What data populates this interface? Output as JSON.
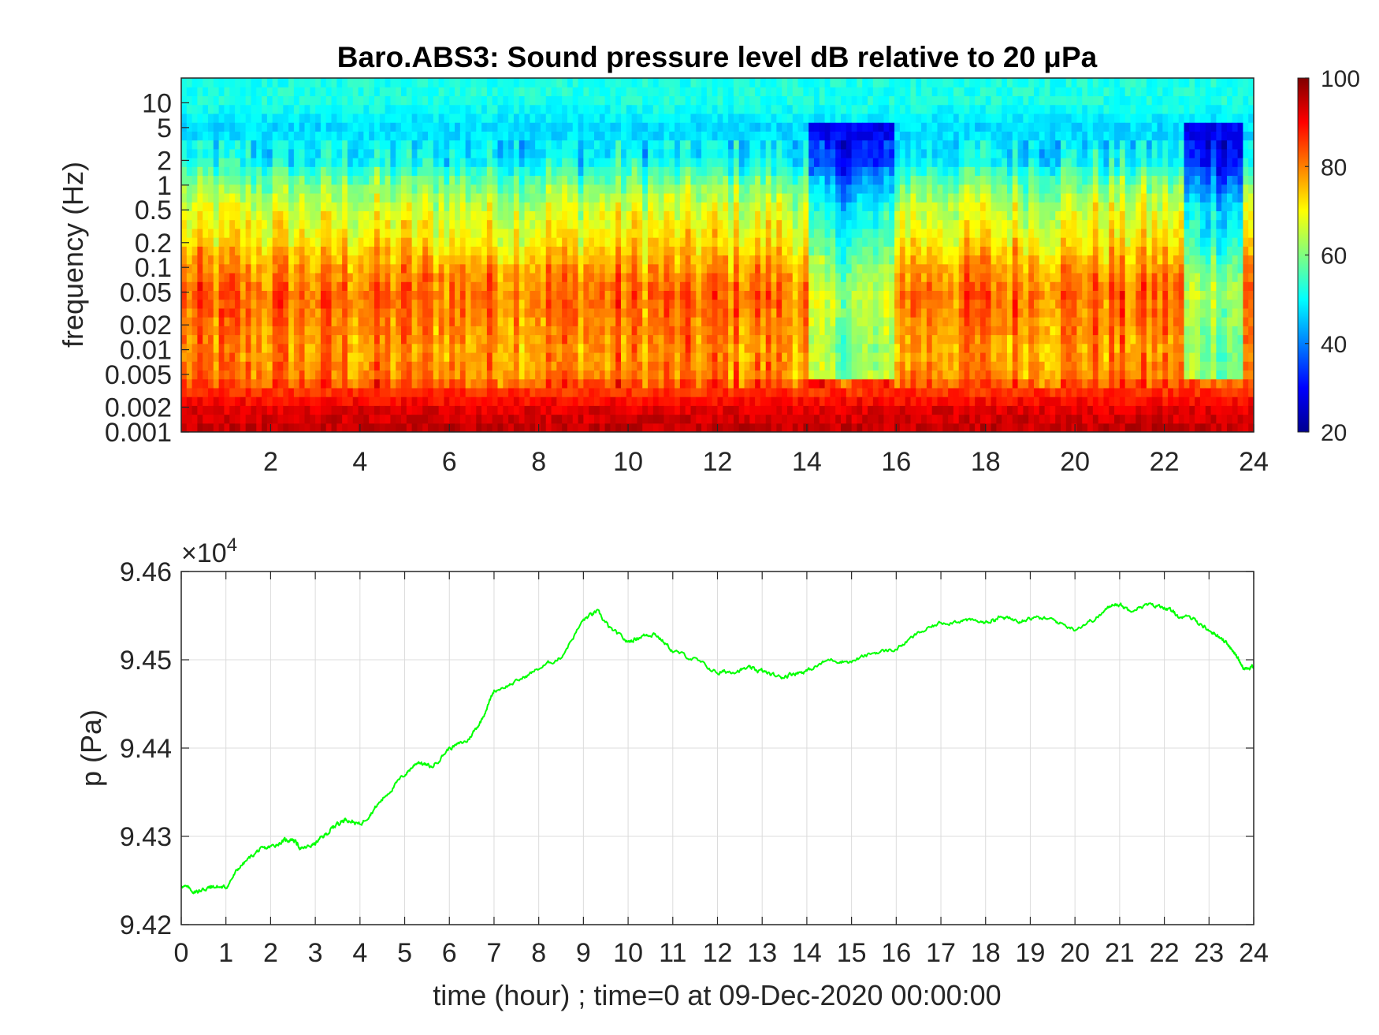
{
  "chart_data": [
    {
      "type": "heatmap",
      "title": "Baro.ABS3: Sound pressure level dB relative to 20 μPa",
      "xlabel": "",
      "ylabel": "frequency (Hz)",
      "xlim": [
        0,
        24
      ],
      "x_ticks": [
        2,
        4,
        6,
        8,
        10,
        12,
        14,
        16,
        18,
        20,
        22,
        24
      ],
      "y_scale": "log",
      "ylim": [
        0.001,
        20
      ],
      "y_ticks": [
        0.001,
        0.002,
        0.005,
        0.01,
        0.02,
        0.05,
        0.1,
        0.2,
        0.5,
        1,
        2,
        5,
        10
      ],
      "y_tick_labels": [
        "0.001",
        "0.002",
        "0.005",
        "0.01",
        "0.02",
        "0.05",
        "0.1",
        "0.2",
        "0.5",
        "1",
        "2",
        "5",
        "10"
      ],
      "colormap": "jet",
      "colorbar": {
        "range": [
          20,
          100
        ],
        "ticks": [
          20,
          40,
          60,
          80,
          100
        ]
      },
      "approx_levels_db_by_frequency": [
        {
          "freq_hz": 0.001,
          "db": 95
        },
        {
          "freq_hz": 0.002,
          "db": 92
        },
        {
          "freq_hz": 0.005,
          "db": 80
        },
        {
          "freq_hz": 0.01,
          "db": 78
        },
        {
          "freq_hz": 0.02,
          "db": 80
        },
        {
          "freq_hz": 0.05,
          "db": 82
        },
        {
          "freq_hz": 0.1,
          "db": 78
        },
        {
          "freq_hz": 0.2,
          "db": 72
        },
        {
          "freq_hz": 0.5,
          "db": 67
        },
        {
          "freq_hz": 1,
          "db": 60
        },
        {
          "freq_hz": 2,
          "db": 50
        },
        {
          "freq_hz": 5,
          "db": 47
        },
        {
          "freq_hz": 10,
          "db": 52
        },
        {
          "freq_hz": 20,
          "db": 52
        }
      ],
      "quiet_periods_hours": [
        [
          14,
          15.9
        ],
        [
          22.5,
          23.8
        ]
      ]
    },
    {
      "type": "line",
      "xlabel": "time (hour) ; time=0 at 09-Dec-2020 00:00:00",
      "ylabel": "p (Pa)",
      "y_multiplier": "×10",
      "y_multiplier_exponent": "4",
      "xlim": [
        0,
        24
      ],
      "ylim": [
        9.42,
        9.46
      ],
      "x_ticks": [
        0,
        1,
        2,
        3,
        4,
        5,
        6,
        7,
        8,
        9,
        10,
        11,
        12,
        13,
        14,
        15,
        16,
        17,
        18,
        19,
        20,
        21,
        22,
        23,
        24
      ],
      "y_ticks": [
        9.42,
        9.43,
        9.44,
        9.45,
        9.46
      ],
      "y_tick_labels": [
        "9.42",
        "9.43",
        "9.44",
        "9.45",
        "9.46"
      ],
      "grid": true,
      "series": [
        {
          "color": "#00ff00",
          "x": [
            0,
            0.3,
            0.5,
            0.7,
            1.0,
            1.3,
            1.7,
            2.0,
            2.3,
            2.5,
            2.7,
            3.0,
            3.3,
            3.5,
            3.7,
            4.0,
            4.3,
            4.6,
            5.0,
            5.3,
            5.6,
            6.0,
            6.4,
            6.7,
            7.0,
            7.5,
            8.0,
            8.5,
            9.0,
            9.3,
            9.6,
            10.0,
            10.3,
            10.6,
            11.0,
            11.5,
            12.0,
            12.3,
            12.7,
            13.0,
            13.4,
            13.7,
            14.0,
            14.5,
            15.0,
            15.5,
            16.0,
            16.5,
            17.0,
            17.5,
            18.0,
            18.3,
            18.7,
            19.0,
            19.5,
            20.0,
            20.5,
            20.9,
            21.2,
            21.6,
            22.0,
            22.3,
            22.7,
            23.0,
            23.3,
            23.6,
            23.8,
            24.0
          ],
          "y": [
            9.4245,
            9.4237,
            9.424,
            9.4243,
            9.4242,
            9.4265,
            9.4283,
            9.4288,
            9.4295,
            9.4297,
            9.4285,
            9.4292,
            9.4305,
            9.4315,
            9.432,
            9.4313,
            9.433,
            9.4348,
            9.437,
            9.4385,
            9.4378,
            9.44,
            9.4408,
            9.443,
            9.4465,
            9.4475,
            9.449,
            9.4503,
            9.4545,
            9.4555,
            9.4535,
            9.452,
            9.4527,
            9.453,
            9.451,
            9.45,
            9.4485,
            9.4487,
            9.449,
            9.4487,
            9.448,
            9.4485,
            9.4487,
            9.45,
            9.4498,
            9.4508,
            9.4512,
            9.453,
            9.4542,
            9.4545,
            9.4542,
            9.4548,
            9.4545,
            9.4548,
            9.4545,
            9.4535,
            9.4548,
            9.4565,
            9.4557,
            9.4562,
            9.456,
            9.455,
            9.4545,
            9.4533,
            9.4525,
            9.4505,
            9.449,
            9.4492
          ]
        }
      ]
    }
  ]
}
